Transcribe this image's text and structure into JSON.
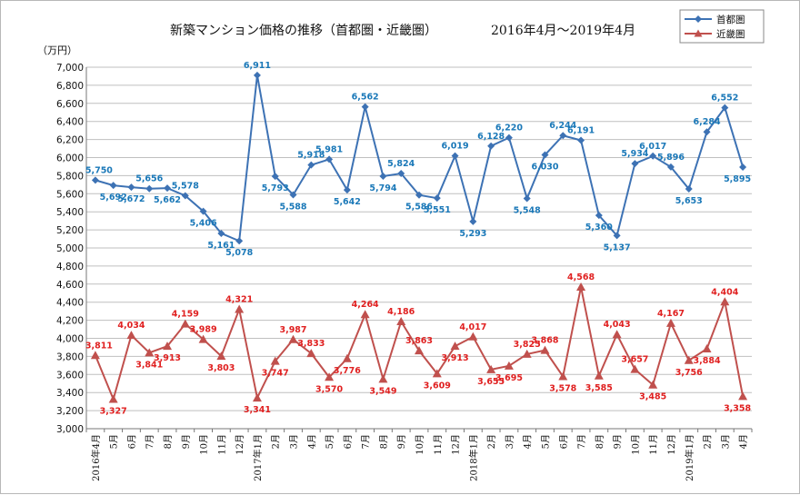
{
  "chart_data": {
    "type": "line",
    "title": "新築マンション価格の推移（首都圏・近畿圏）",
    "subtitle": "2016年4月～2019年4月",
    "ylabel": "（万円）",
    "xlabel": "",
    "ylim": [
      3000,
      7000
    ],
    "ystep": 200,
    "grid": true,
    "legend_position": "top-right",
    "categories": [
      "2016年4月",
      "5月",
      "6月",
      "7月",
      "8月",
      "9月",
      "10月",
      "11月",
      "12月",
      "2017年1月",
      "2月",
      "3月",
      "4月",
      "5月",
      "6月",
      "7月",
      "8月",
      "9月",
      "10月",
      "11月",
      "12月",
      "2018年1月",
      "2月",
      "3月",
      "4月",
      "5月",
      "6月",
      "7月",
      "8月",
      "9月",
      "10月",
      "11月",
      "12月",
      "2019年1月",
      "2月",
      "3月",
      "4月"
    ],
    "series": [
      {
        "name": "首都圏",
        "color": "#3d72b4",
        "label_color": "#1a78b8",
        "marker": "diamond",
        "values": [
          5750,
          5692,
          5672,
          5656,
          5662,
          5578,
          5406,
          5161,
          5078,
          6911,
          5793,
          5588,
          5918,
          5981,
          5642,
          6562,
          5794,
          5824,
          5586,
          5551,
          6019,
          5293,
          6128,
          6220,
          5548,
          6030,
          6244,
          6191,
          5360,
          5137,
          5934,
          6017,
          5896,
          5653,
          6284,
          6552,
          5895
        ]
      },
      {
        "name": "近畿圏",
        "color": "#c0504d",
        "label_color": "#e02020",
        "marker": "triangle",
        "values": [
          3811,
          3327,
          4034,
          3841,
          3913,
          4159,
          3989,
          3803,
          4321,
          3341,
          3747,
          3987,
          3833,
          3570,
          3776,
          4264,
          3549,
          4186,
          3863,
          3609,
          3913,
          4017,
          3655,
          3695,
          3825,
          3868,
          3578,
          4568,
          3585,
          4043,
          3657,
          3485,
          4167,
          3756,
          3884,
          4404,
          3358
        ]
      }
    ]
  }
}
